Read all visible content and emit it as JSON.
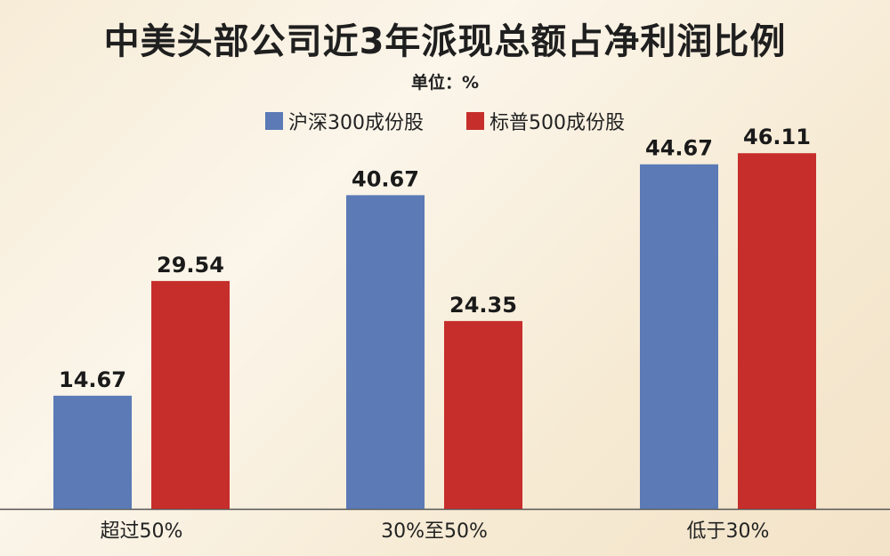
{
  "title": "中美头部公司近3年派现总额占净利润比例",
  "unit": "单位：%",
  "legend": [
    {
      "name": "沪深300成份股",
      "color": "#5b7ab6"
    },
    {
      "name": "标普500成份股",
      "color": "#c62e2b"
    }
  ],
  "chart_data": {
    "type": "bar",
    "title": "中美头部公司近3年派现总额占净利润比例",
    "unit": "单位：%",
    "categories": [
      "超过50%",
      "30%至50%",
      "低于30%"
    ],
    "series": [
      {
        "name": "沪深300成份股",
        "color": "#5b7ab6",
        "values": [
          14.67,
          40.67,
          44.67
        ]
      },
      {
        "name": "标普500成份股",
        "color": "#c62e2b",
        "values": [
          29.54,
          24.35,
          46.11
        ]
      }
    ],
    "value_labels": [
      [
        "14.67",
        "40.67",
        "44.67"
      ],
      [
        "29.54",
        "24.35",
        "46.11"
      ]
    ],
    "ylim": [
      0,
      50
    ],
    "grid": false,
    "legend_position": "top-center"
  }
}
